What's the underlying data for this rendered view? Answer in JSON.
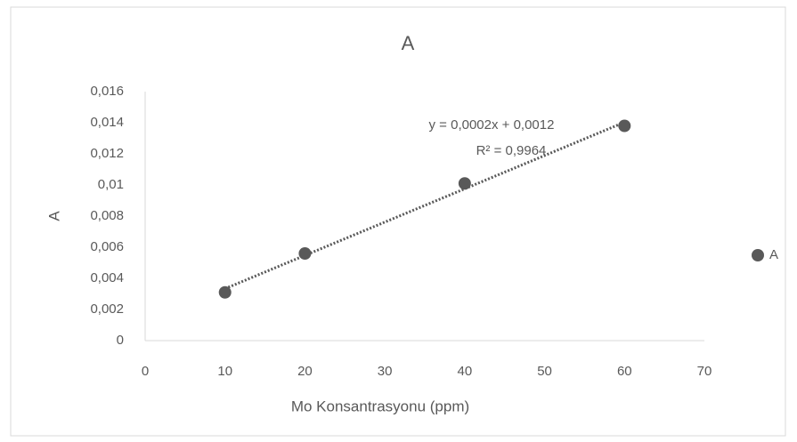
{
  "chart_data": {
    "type": "scatter",
    "title": "A",
    "x_label": "Mo Konsantrasyonu (ppm)",
    "y_label": "A",
    "x": [
      10,
      20,
      40,
      60
    ],
    "series": [
      {
        "name": "A",
        "color": "#595959",
        "values": [
          0.0031,
          0.0056,
          0.0101,
          0.0138
        ]
      }
    ],
    "xlim": [
      0,
      70
    ],
    "xticks": [
      0,
      10,
      20,
      30,
      40,
      50,
      60,
      70
    ],
    "ylim": [
      0,
      0.016
    ],
    "yticks": [
      0,
      {
        "value": 0.002,
        "label": "0,002"
      },
      {
        "value": 0.004,
        "label": "0,004"
      },
      {
        "value": 0.006,
        "label": "0,006"
      },
      {
        "value": 0.008,
        "label": "0,008"
      },
      {
        "value": 0.01,
        "label": "0,01"
      },
      {
        "value": 0.012,
        "label": "0,012"
      },
      {
        "value": 0.014,
        "label": "0,014"
      },
      {
        "value": 0.016,
        "label": "0,016"
      }
    ],
    "grid": false,
    "trendline": "linear",
    "annotations": [
      "y = 0,0002x + 0,0012",
      "R² = 0,9964"
    ],
    "legend": "right"
  }
}
